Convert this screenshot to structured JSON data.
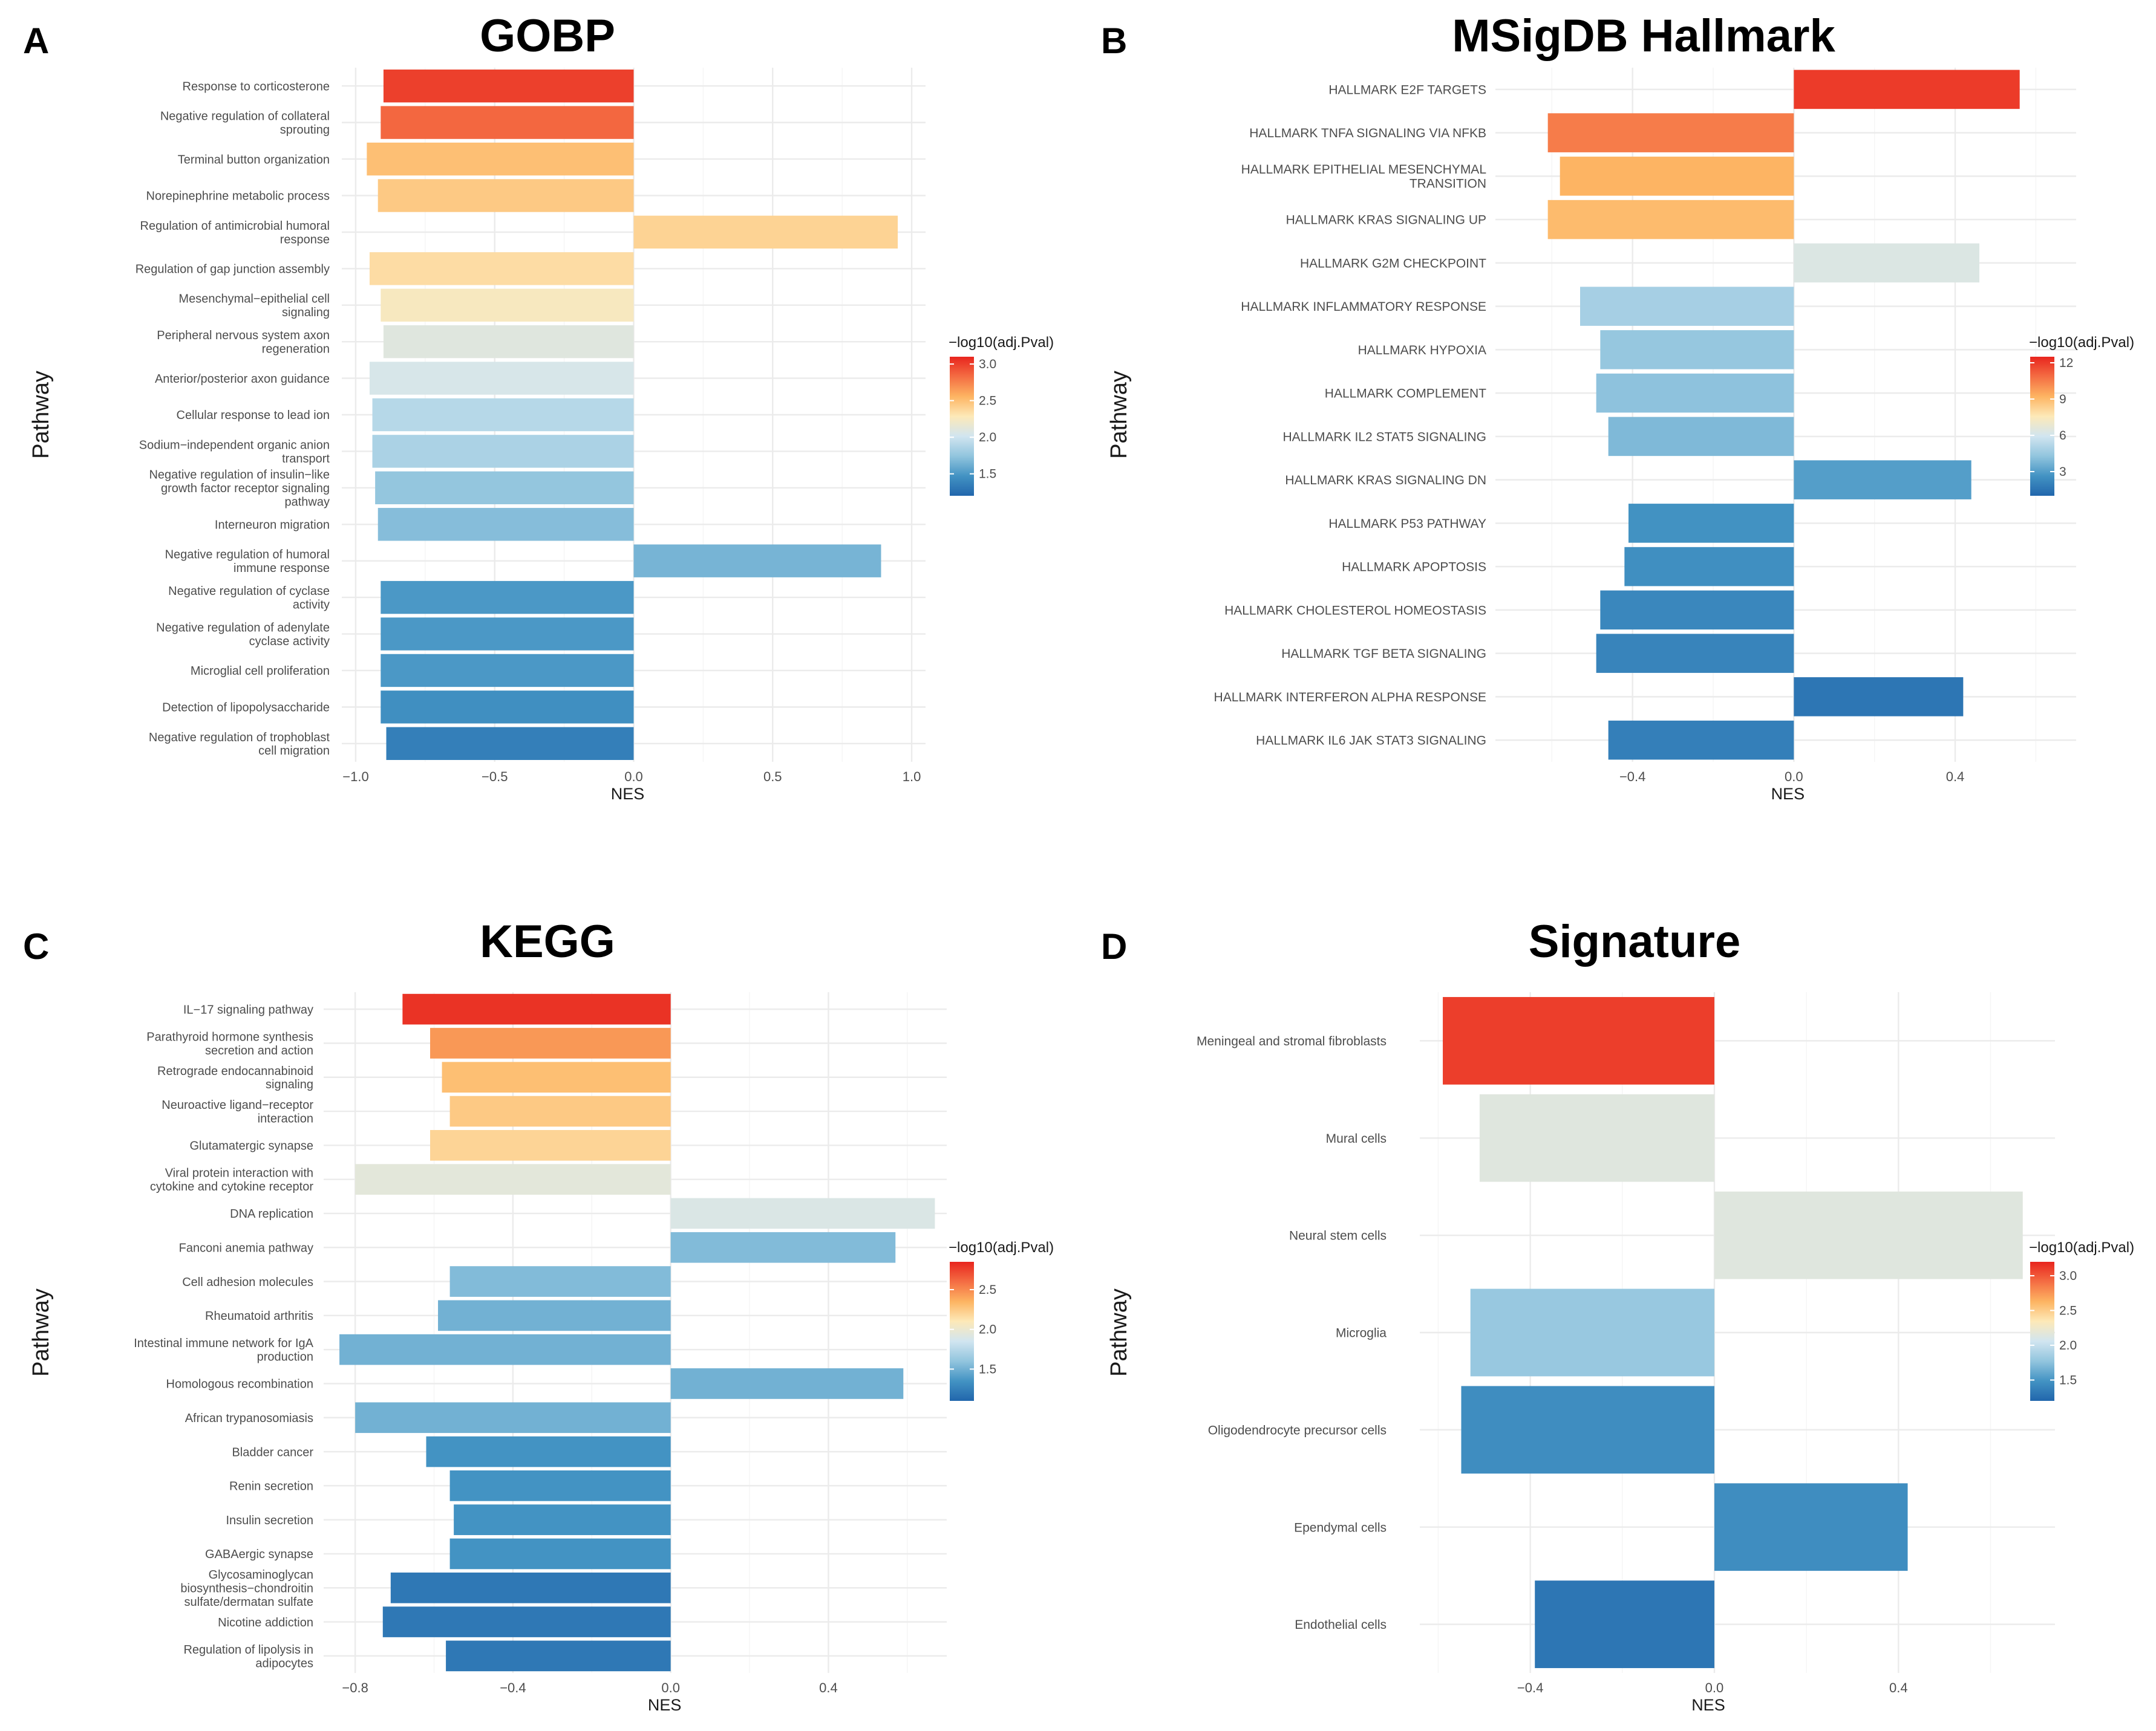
{
  "colors": {
    "scale": [
      "#2166ac",
      "#4393c3",
      "#92c5de",
      "#d1e5f0",
      "#fde9b8",
      "#fdb462",
      "#f46d43",
      "#e8251e"
    ],
    "grid_major": "#ebebeb",
    "grid_minor": "#f5f5f5",
    "background": "#ffffff"
  },
  "chart_data": [
    {
      "letter": "A",
      "title": "GOBP",
      "type": "bar",
      "orientation": "horizontal",
      "xlabel": "NES",
      "ylabel": "Pathway",
      "xlim": [
        -1.05,
        1.05
      ],
      "xticks": [
        -1.0,
        -0.5,
        0.0,
        0.5,
        1.0
      ],
      "xtick_labels": [
        "−1.0",
        "−0.5",
        "0.0",
        "0.5",
        "1.0"
      ],
      "legend": {
        "title": "−log10(adj.Pval)",
        "range": [
          1.2,
          3.1
        ],
        "ticks": [
          3.0,
          2.5,
          2.0,
          1.5
        ],
        "tick_labels": [
          "3.0",
          "2.5",
          "2.0",
          "1.5"
        ],
        "position": "right"
      },
      "categories": [
        [
          "Response to corticosterone"
        ],
        [
          "Negative regulation of collateral",
          "sprouting"
        ],
        [
          "Terminal button organization"
        ],
        [
          "Norepinephrine metabolic process"
        ],
        [
          "Regulation of antimicrobial humoral",
          "response"
        ],
        [
          "Regulation of gap junction assembly"
        ],
        [
          "Mesenchymal−epithelial cell",
          "signaling"
        ],
        [
          "Peripheral nervous system axon",
          "regeneration"
        ],
        [
          "Anterior/posterior axon guidance"
        ],
        [
          "Cellular response to lead ion"
        ],
        [
          "Sodium−independent organic anion",
          "transport"
        ],
        [
          "Negative regulation of insulin−like",
          "growth factor receptor signaling",
          "pathway"
        ],
        [
          "Interneuron migration"
        ],
        [
          "Negative regulation of humoral",
          "immune response"
        ],
        [
          "Negative regulation of cyclase",
          "activity"
        ],
        [
          "Negative regulation of adenylate",
          "cyclase activity"
        ],
        [
          "Microglial cell proliferation"
        ],
        [
          "Detection of lipopolysaccharide"
        ],
        [
          "Negative regulation of trophoblast",
          "cell migration"
        ]
      ],
      "values": [
        -0.9,
        -0.91,
        -0.96,
        -0.92,
        0.95,
        -0.95,
        -0.91,
        -0.9,
        -0.95,
        -0.94,
        -0.94,
        -0.93,
        -0.92,
        0.89,
        -0.91,
        -0.91,
        -0.91,
        -0.91,
        -0.89
      ],
      "color_values": [
        3.0,
        2.85,
        2.5,
        2.45,
        2.4,
        2.35,
        2.25,
        2.1,
        2.05,
        1.9,
        1.85,
        1.75,
        1.7,
        1.65,
        1.5,
        1.5,
        1.5,
        1.45,
        1.35
      ]
    },
    {
      "letter": "B",
      "title": "MSigDB Hallmark",
      "type": "bar",
      "orientation": "horizontal",
      "xlabel": "NES",
      "ylabel": "Pathway",
      "xlim": [
        -0.74,
        0.7
      ],
      "xticks": [
        -0.4,
        0.0,
        0.4
      ],
      "xtick_labels": [
        "−0.4",
        "0.0",
        "0.4"
      ],
      "legend": {
        "title": "−log10(adj.Pval)",
        "range": [
          1.0,
          12.5
        ],
        "ticks": [
          12,
          9,
          6,
          3
        ],
        "tick_labels": [
          "12",
          "9",
          "6",
          "3"
        ],
        "position": "right"
      },
      "categories": [
        [
          "HALLMARK E2F TARGETS"
        ],
        [
          "HALLMARK TNFA SIGNALING VIA NFKB"
        ],
        [
          "HALLMARK EPITHELIAL MESENCHYMAL",
          "TRANSITION"
        ],
        [
          "HALLMARK KRAS SIGNALING UP"
        ],
        [
          "HALLMARK G2M CHECKPOINT"
        ],
        [
          "HALLMARK INFLAMMATORY RESPONSE"
        ],
        [
          "HALLMARK HYPOXIA"
        ],
        [
          "HALLMARK COMPLEMENT"
        ],
        [
          "HALLMARK IL2 STAT5 SIGNALING"
        ],
        [
          "HALLMARK KRAS SIGNALING DN"
        ],
        [
          "HALLMARK P53 PATHWAY"
        ],
        [
          "HALLMARK APOPTOSIS"
        ],
        [
          "HALLMARK CHOLESTEROL HOMEOSTASIS"
        ],
        [
          "HALLMARK TGF BETA SIGNALING"
        ],
        [
          "HALLMARK INTERFERON ALPHA RESPONSE"
        ],
        [
          "HALLMARK IL6 JAK STAT3 SIGNALING"
        ]
      ],
      "values": [
        0.56,
        -0.61,
        -0.58,
        -0.61,
        0.46,
        -0.53,
        -0.48,
        -0.49,
        -0.46,
        0.44,
        -0.41,
        -0.42,
        -0.48,
        -0.49,
        0.42,
        -0.46
      ],
      "color_values": [
        12.0,
        10.5,
        9.2,
        9.0,
        6.3,
        4.8,
        4.4,
        4.2,
        3.9,
        3.0,
        2.6,
        2.5,
        2.2,
        2.1,
        1.6,
        1.9
      ]
    },
    {
      "letter": "C",
      "title": "KEGG",
      "type": "bar",
      "orientation": "horizontal",
      "xlabel": "NES",
      "ylabel": "Pathway",
      "xlim": [
        -0.88,
        0.7
      ],
      "xticks": [
        -0.8,
        -0.4,
        0.0,
        0.4
      ],
      "xtick_labels": [
        "−0.8",
        "−0.4",
        "0.0",
        "0.4"
      ],
      "legend": {
        "title": "−log10(adj.Pval)",
        "range": [
          1.1,
          2.85
        ],
        "ticks": [
          2.5,
          2.0,
          1.5
        ],
        "tick_labels": [
          "2.5",
          "2.0",
          "1.5"
        ],
        "position": "right"
      },
      "categories": [
        [
          "IL−17 signaling pathway"
        ],
        [
          "Parathyroid hormone synthesis",
          "secretion and action"
        ],
        [
          "Retrograde endocannabinoid",
          "signaling"
        ],
        [
          "Neuroactive ligand−receptor",
          "interaction"
        ],
        [
          "Glutamatergic synapse"
        ],
        [
          "Viral protein interaction with",
          "cytokine and cytokine receptor"
        ],
        [
          "DNA replication"
        ],
        [
          "Fanconi anemia pathway"
        ],
        [
          "Cell adhesion molecules"
        ],
        [
          "Rheumatoid arthritis"
        ],
        [
          "Intestinal immune network for IgA",
          "production"
        ],
        [
          "Homologous recombination"
        ],
        [
          "African trypanosomiasis"
        ],
        [
          "Bladder cancer"
        ],
        [
          "Renin secretion"
        ],
        [
          "Insulin secretion"
        ],
        [
          "GABAergic synapse"
        ],
        [
          "Glycosaminoglycan",
          "biosynthesis−chondroitin",
          "sulfate/dermatan sulfate"
        ],
        [
          "Nicotine addiction"
        ],
        [
          "Regulation of lipolysis in",
          "adipocytes"
        ]
      ],
      "values": [
        -0.68,
        -0.61,
        -0.58,
        -0.56,
        -0.61,
        -0.8,
        0.67,
        0.57,
        -0.56,
        -0.59,
        -0.84,
        0.59,
        -0.8,
        -0.62,
        -0.56,
        -0.55,
        -0.56,
        -0.71,
        -0.73,
        -0.57
      ],
      "color_values": [
        2.8,
        2.45,
        2.3,
        2.25,
        2.2,
        1.95,
        1.9,
        1.55,
        1.55,
        1.5,
        1.5,
        1.5,
        1.5,
        1.35,
        1.35,
        1.35,
        1.35,
        1.2,
        1.2,
        1.2
      ]
    },
    {
      "letter": "D",
      "title": "Signature",
      "type": "bar",
      "orientation": "horizontal",
      "xlabel": "NES",
      "ylabel": "Pathway",
      "xlim": [
        -0.64,
        0.74
      ],
      "xticks": [
        -0.4,
        0.0,
        0.4
      ],
      "xtick_labels": [
        "−0.4",
        "0.0",
        "0.4"
      ],
      "legend": {
        "title": "−log10(adj.Pval)",
        "range": [
          1.2,
          3.2
        ],
        "ticks": [
          3.0,
          2.5,
          2.0,
          1.5
        ],
        "tick_labels": [
          "3.0",
          "2.5",
          "2.0",
          "1.5"
        ],
        "position": "right"
      },
      "categories": [
        [
          "Meningeal and stromal fibroblasts"
        ],
        [
          "Mural cells"
        ],
        [
          "Neural stem cells"
        ],
        [
          "Microglia"
        ],
        [
          "Oligodendrocyte precursor cells"
        ],
        [
          "Ependymal cells"
        ],
        [
          "Endothelial cells"
        ]
      ],
      "values": [
        -0.59,
        -0.51,
        0.67,
        -0.53,
        -0.55,
        0.42,
        -0.39
      ],
      "color_values": [
        3.1,
        2.15,
        2.15,
        1.8,
        1.45,
        1.45,
        1.3
      ]
    }
  ]
}
